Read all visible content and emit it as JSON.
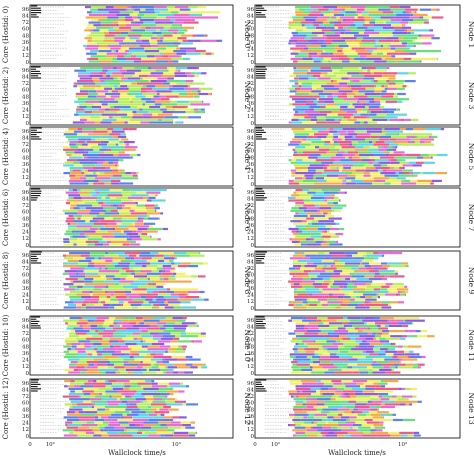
{
  "figure": {
    "x_label": "Wallclock time/s",
    "y_label_template": "Core (Hostid: {n})",
    "node_label_template": "Node {n}"
  },
  "chart_data": {
    "type": "bar",
    "description_of_mark": "horizontal task-execution timelines per core",
    "x_scale": "log",
    "x_ticks": [
      "0",
      "10²",
      "10³"
    ],
    "y_ticks": [
      "96",
      "84",
      "72",
      "60",
      "48",
      "36",
      "24",
      "12",
      "0"
    ],
    "grid": "off",
    "panel_order": "two columns, seven rows",
    "palette": [
      "#f2f26a",
      "#f7a94a",
      "#e86bd8",
      "#8d5ce0",
      "#5d82f0",
      "#5fd6e6",
      "#69e077",
      "#b6ef5e",
      "#ee5a8a",
      "#d2d8e8"
    ],
    "panels": [
      {
        "node": 0,
        "extent": 0.95,
        "dense": [
          0.3,
          0.95
        ]
      },
      {
        "node": 1,
        "extent": 0.92,
        "dense": [
          0.2,
          0.92
        ]
      },
      {
        "node": 2,
        "extent": 0.9,
        "dense": [
          0.25,
          0.9
        ]
      },
      {
        "node": 3,
        "extent": 0.8,
        "dense": [
          0.2,
          0.8
        ]
      },
      {
        "node": 4,
        "extent": 0.55,
        "dense": [
          0.2,
          0.55
        ]
      },
      {
        "node": 5,
        "extent": 0.95,
        "dense": [
          0.2,
          0.95
        ]
      },
      {
        "node": 6,
        "extent": 0.68,
        "dense": [
          0.2,
          0.68
        ]
      },
      {
        "node": 7,
        "extent": 0.45,
        "dense": [
          0.2,
          0.45
        ]
      },
      {
        "node": 8,
        "extent": 0.88,
        "dense": [
          0.2,
          0.88
        ]
      },
      {
        "node": 9,
        "extent": 0.75,
        "dense": [
          0.2,
          0.75
        ]
      },
      {
        "node": 10,
        "extent": 0.88,
        "dense": [
          0.2,
          0.88
        ]
      },
      {
        "node": 11,
        "extent": 0.88,
        "dense": [
          0.2,
          0.88
        ]
      },
      {
        "node": 12,
        "extent": 0.83,
        "dense": [
          0.2,
          0.83
        ]
      },
      {
        "node": 13,
        "extent": 0.82,
        "dense": [
          0.2,
          0.82
        ]
      }
    ]
  }
}
